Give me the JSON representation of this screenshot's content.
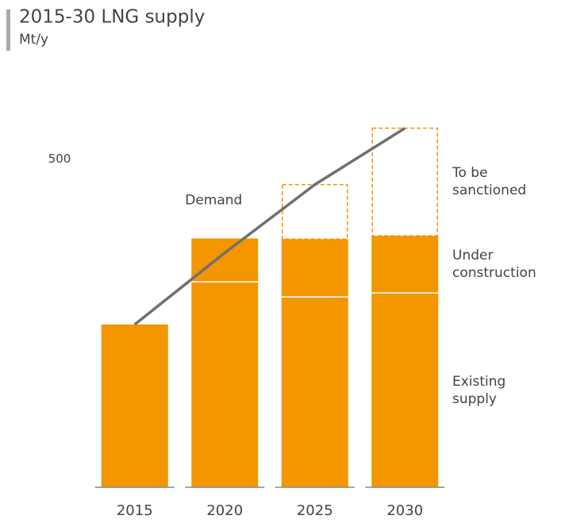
{
  "chart_data": {
    "type": "stacked_bar_line",
    "title": "2015-30 LNG supply",
    "subtitle": "Mt/y",
    "categories": [
      "2015",
      "2020",
      "2025",
      "2030"
    ],
    "series": [
      {
        "name": "Existing supply",
        "color": "#f39600",
        "values": [
          248,
          313,
          290,
          296
        ]
      },
      {
        "name": "Under construction",
        "color": "#f39600",
        "values": [
          0,
          66,
          88,
          87
        ]
      },
      {
        "name": "To be sanctioned",
        "color": "#f39600",
        "style": "dashed",
        "values": [
          0,
          0,
          83,
          164
        ]
      },
      {
        "name": "Demand",
        "color": "#707070",
        "type": "line",
        "values": [
          248,
          357,
          461,
          547
        ]
      }
    ],
    "ylim": [
      0,
      550
    ],
    "yticks": [
      500
    ],
    "grid": false
  }
}
